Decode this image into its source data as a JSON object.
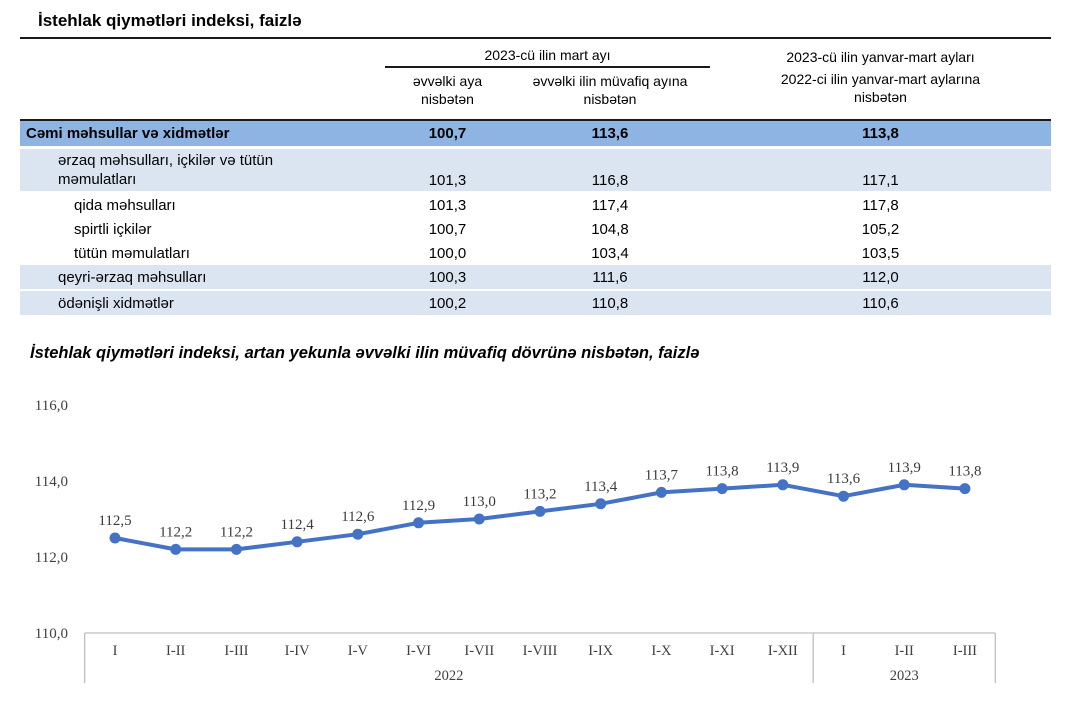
{
  "page_title": "İstehlak qiymətləri indeksi, faizlə",
  "table": {
    "group_header": "2023-cü ilin mart ayı",
    "subheaders": {
      "col1": "əvvəlki aya nisbətən",
      "col2": "əvvəlki ilin müvafiq ayına nisbətən"
    },
    "right_header_line1": "2023-cü ilin yanvar-mart ayları",
    "right_header_line2": "2022-ci ilin yanvar-mart aylarına nisbətən",
    "rows": [
      {
        "label": "Cəmi məhsullar və xidmətlər",
        "v1": "100,7",
        "v2": "113,6",
        "v3": "113,8",
        "style": "total"
      },
      {
        "label": "ərzaq məhsulları, içkilər və tütün məmulatları",
        "v1": "101,3",
        "v2": "116,8",
        "v3": "117,1",
        "style": "sub two-line"
      },
      {
        "label": "qida məhsulları",
        "v1": "101,3",
        "v2": "117,4",
        "v3": "117,8",
        "style": "plain"
      },
      {
        "label": "spirtli içkilər",
        "v1": "100,7",
        "v2": "104,8",
        "v3": "105,2",
        "style": "plain"
      },
      {
        "label": "tütün məmulatları",
        "v1": "100,0",
        "v2": "103,4",
        "v3": "103,5",
        "style": "plain"
      },
      {
        "label": "qeyri-ərzaq məhsulları",
        "v1": "100,3",
        "v2": "111,6",
        "v3": "112,0",
        "style": "sub"
      },
      {
        "label": "ödənişli xidmətlər",
        "v1": "100,2",
        "v2": "110,8",
        "v3": "110,6",
        "style": "sub"
      }
    ]
  },
  "chart_data": {
    "type": "line",
    "title": "İstehlak qiymətləri indeksi, artan yekunla əvvəlki ilin müvafiq dövrünə nisbətən, faizlə",
    "categories": [
      "I",
      "I-II",
      "I-III",
      "I-IV",
      "I-V",
      "I-VI",
      "I-VII",
      "I-VIII",
      "I-IX",
      "I-X",
      "I-XI",
      "I-XII",
      "I",
      "I-II",
      "I-III"
    ],
    "values": [
      112.5,
      112.2,
      112.2,
      112.4,
      112.6,
      112.9,
      113.0,
      113.2,
      113.4,
      113.7,
      113.8,
      113.9,
      113.6,
      113.9,
      113.8
    ],
    "point_labels": [
      "112,5",
      "112,2",
      "112,2",
      "112,4",
      "112,6",
      "112,9",
      "113,0",
      "113,2",
      "113,4",
      "113,7",
      "113,8",
      "113,9",
      "113,6",
      "113,9",
      "113,8"
    ],
    "y_tick_values": [
      116,
      114,
      112,
      110
    ],
    "y_tick_labels": [
      "116,0",
      "114,0",
      "112,0",
      "110,0"
    ],
    "ylim": [
      110,
      116
    ],
    "year_groups": [
      {
        "label": "2022",
        "count": 12
      },
      {
        "label": "2023",
        "count": 3
      }
    ],
    "grid": "off",
    "legend": "none",
    "xlabel": "",
    "ylabel": ""
  },
  "colors": {
    "line": "#4472C4",
    "total_row_bg": "#8DB4E2",
    "sub_row_bg": "#DBE5F1",
    "axis": "#BFBFBF",
    "chart_text": "#404040",
    "rule": "#1a1a1a"
  }
}
